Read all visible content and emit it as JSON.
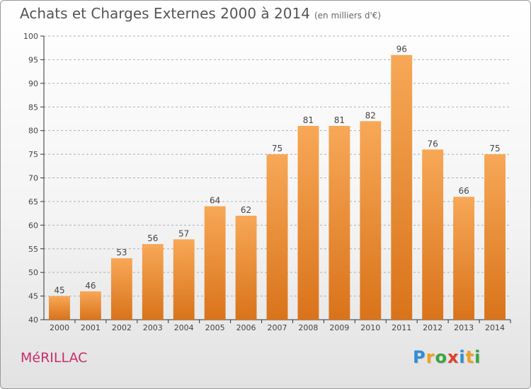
{
  "header": {
    "title": "Achats et Charges Externes 2000 à 2014",
    "unit": "(en milliers d'€)"
  },
  "footer": {
    "place": "MéRILLAC",
    "logo_letters": [
      {
        "char": "P",
        "color": "#2f8fd6"
      },
      {
        "char": "r",
        "color": "#f0a020"
      },
      {
        "char": "o",
        "color": "#3aa540"
      },
      {
        "char": "x",
        "color": "#e0402a"
      },
      {
        "char": "i",
        "color": "#2f8fd6"
      },
      {
        "char": "t",
        "color": "#f0a020"
      },
      {
        "char": "i",
        "color": "#3aa540"
      }
    ]
  },
  "colors": {
    "bar_top": "#f7a857",
    "bar_bottom": "#d9731a",
    "grid": "#b0b0b0",
    "axis": "#333333",
    "title": "#555555",
    "place": "#c8306a"
  },
  "chart_data": {
    "type": "bar",
    "title": "Achats et Charges Externes 2000 à 2014",
    "subtitle": "(en milliers d'€)",
    "xlabel": "",
    "ylabel": "",
    "categories": [
      "2000",
      "2001",
      "2002",
      "2003",
      "2004",
      "2005",
      "2006",
      "2007",
      "2008",
      "2009",
      "2010",
      "2011",
      "2012",
      "2013",
      "2014"
    ],
    "values": [
      45,
      46,
      53,
      56,
      57,
      64,
      62,
      75,
      81,
      81,
      82,
      96,
      76,
      66,
      75
    ],
    "ylim": [
      40,
      100
    ],
    "yticks": [
      40,
      45,
      50,
      55,
      60,
      65,
      70,
      75,
      80,
      85,
      90,
      95,
      100
    ],
    "grid": "horizontal dashed",
    "data_labels": true
  }
}
